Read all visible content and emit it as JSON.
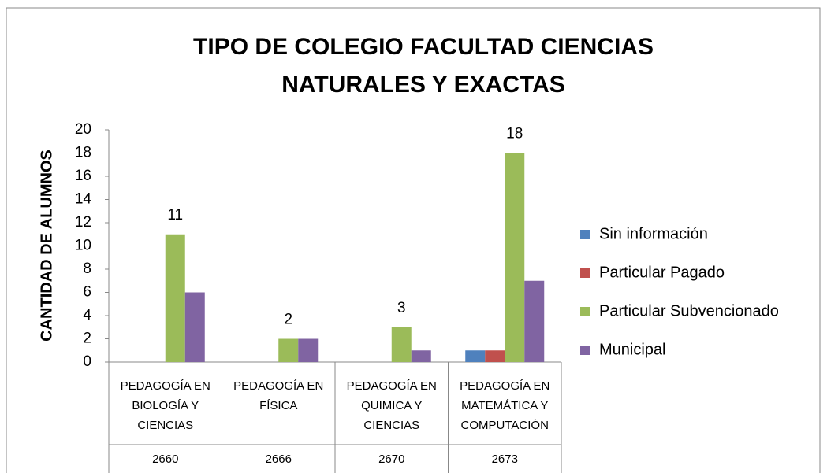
{
  "chart_data": {
    "type": "bar",
    "title": "TIPO DE COLEGIO FACULTAD CIENCIAS NATURALES Y EXACTAS",
    "y_label": "CANTIDAD DE ALUMNOS",
    "categories": [
      "PEDAGOGÍA EN BIOLOGÍA Y CIENCIAS",
      "PEDAGOGÍA EN FÍSICA",
      "PEDAGOGÍA EN QUIMICA Y CIENCIAS",
      "PEDAGOGÍA EN MATEMÁTICA Y COMPUTACIÓN"
    ],
    "category_codes": [
      "2660",
      "2666",
      "2670",
      "2673"
    ],
    "series": [
      {
        "name": "Sin información",
        "color": "#4f81bd",
        "values": [
          0,
          0,
          0,
          1
        ]
      },
      {
        "name": "Particular Pagado",
        "color": "#c0504d",
        "values": [
          0,
          0,
          0,
          1
        ]
      },
      {
        "name": "Particular Subvencionado",
        "color": "#9bbb59",
        "values": [
          11,
          2,
          3,
          18
        ],
        "show_labels": true
      },
      {
        "name": "Municipal",
        "color": "#8064a2",
        "values": [
          6,
          2,
          1,
          7
        ]
      }
    ],
    "ylim": [
      0,
      20
    ],
    "yticks": [
      0,
      2,
      4,
      6,
      8,
      10,
      12,
      14,
      16,
      18,
      20
    ],
    "grid": false,
    "legend": "right"
  }
}
